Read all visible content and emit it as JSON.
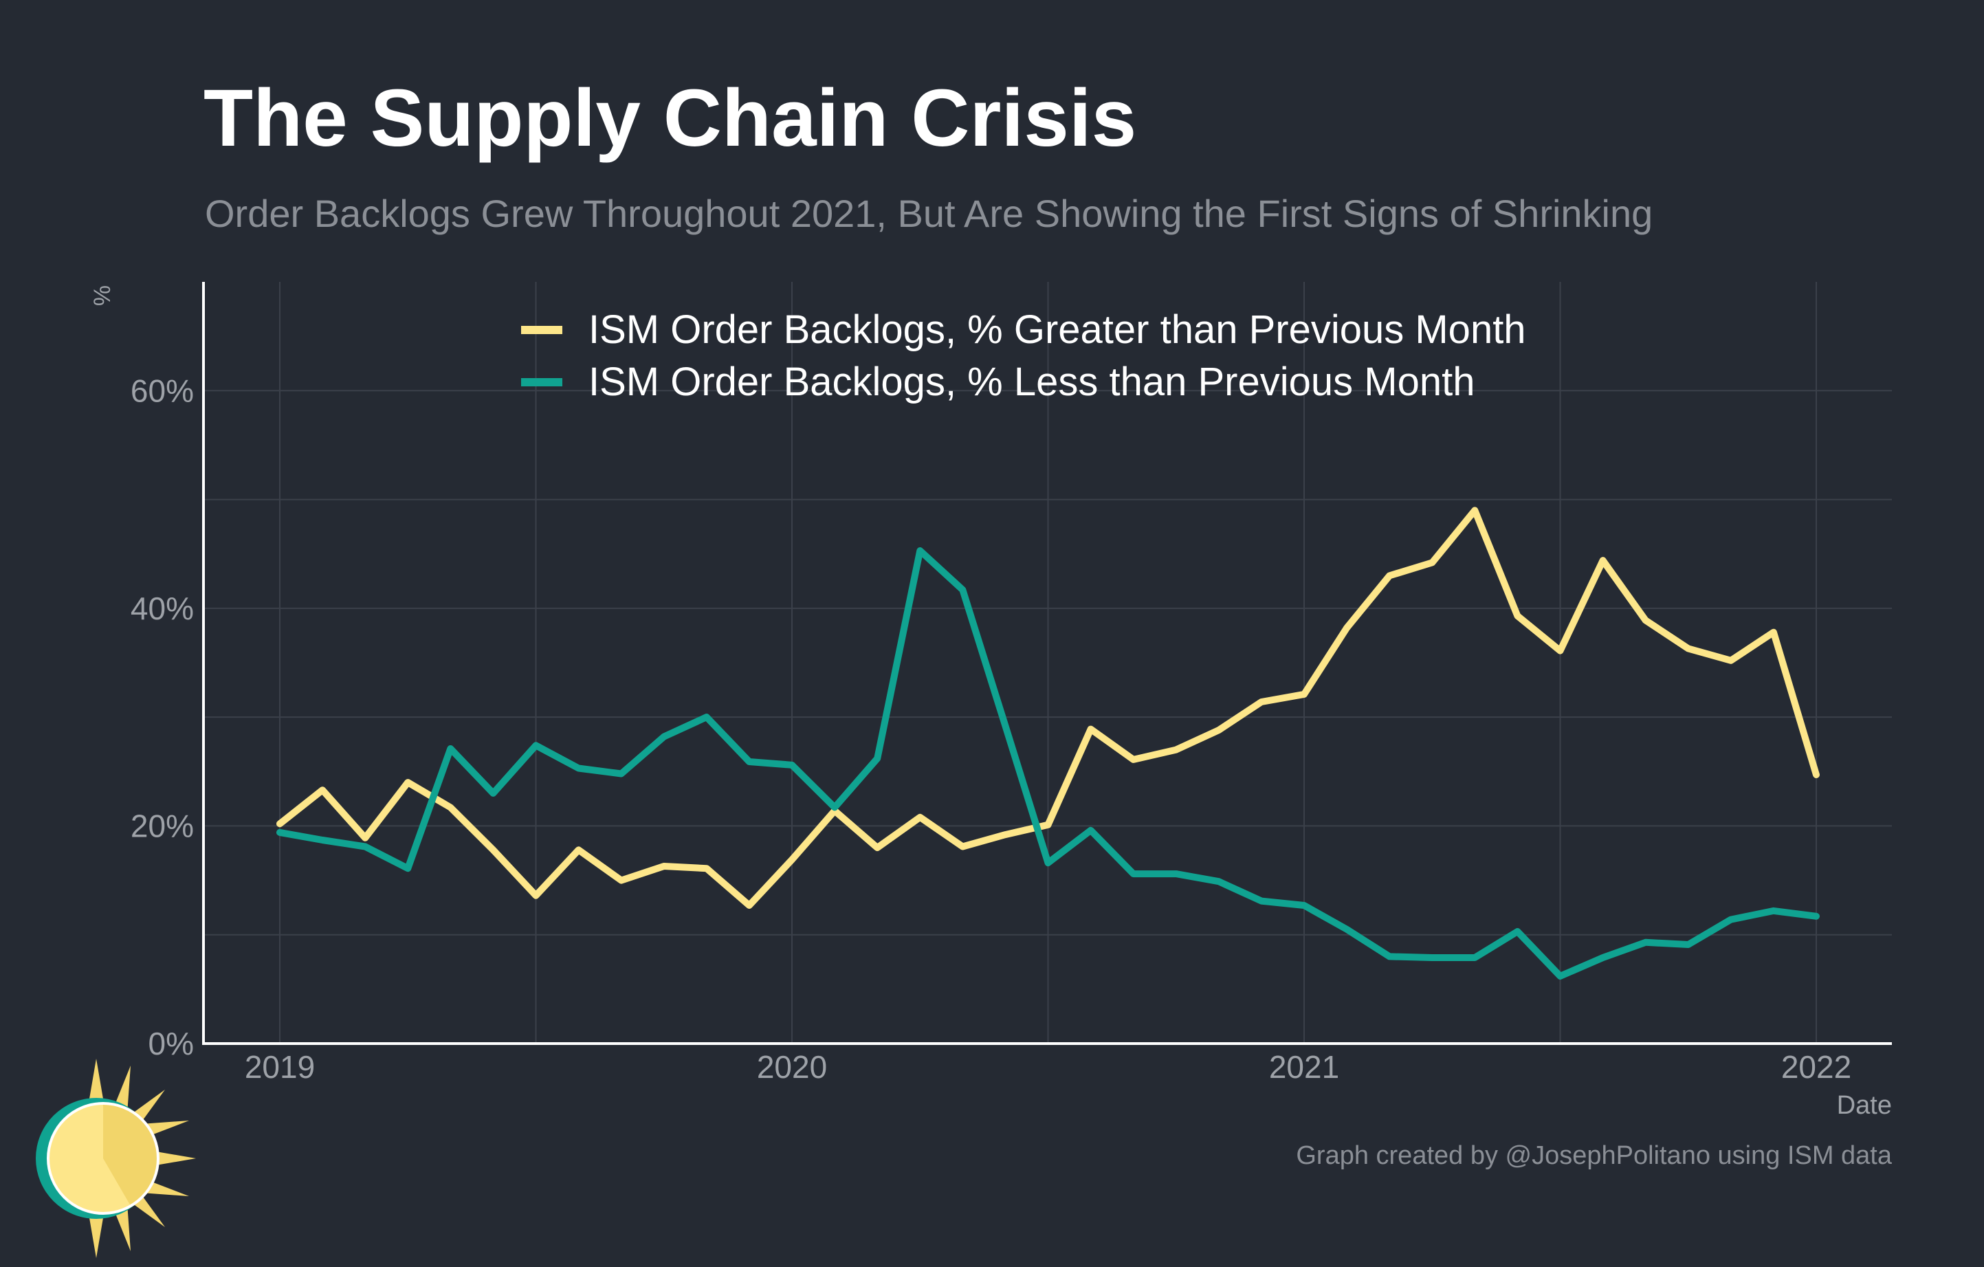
{
  "title": "The Supply Chain Crisis",
  "subtitle": "Order Backlogs Grew Throughout 2021, But Are Showing the First Signs of Shrinking",
  "caption": "Graph created by @JosephPolitano using ISM data",
  "colors": {
    "background": "#252a33",
    "greater": "#fde68a",
    "less": "#10a391",
    "grid": "#3b404a",
    "axis": "#ffffff",
    "tick_text": "#9ea2a8"
  },
  "chart_data": {
    "type": "line",
    "xlabel": "Date",
    "ylabel": "%",
    "xlim": [
      "2019-01",
      "2022-01"
    ],
    "ylim": [
      0,
      70
    ],
    "x_ticks": [
      "2019",
      "2020",
      "2021",
      "2022"
    ],
    "y_ticks": [
      "0%",
      "20%",
      "40%",
      "60%"
    ],
    "legend_position": "top-center",
    "grid": true,
    "x": [
      "2019-01",
      "2019-02",
      "2019-03",
      "2019-04",
      "2019-05",
      "2019-06",
      "2019-07",
      "2019-08",
      "2019-09",
      "2019-10",
      "2019-11",
      "2019-12",
      "2020-01",
      "2020-02",
      "2020-03",
      "2020-04",
      "2020-05",
      "2020-06",
      "2020-07",
      "2020-08",
      "2020-09",
      "2020-10",
      "2020-11",
      "2020-12",
      "2021-01",
      "2021-02",
      "2021-03",
      "2021-04",
      "2021-05",
      "2021-06",
      "2021-07",
      "2021-08",
      "2021-09",
      "2021-10",
      "2021-11",
      "2021-12",
      "2022-01"
    ],
    "series": [
      {
        "name": "ISM Order Backlogs, % Greater than Previous Month",
        "color": "#fde68a",
        "values": [
          20.2,
          23.3,
          18.9,
          24.0,
          21.7,
          17.8,
          13.6,
          17.8,
          15.0,
          16.3,
          16.1,
          12.7,
          16.9,
          21.4,
          18.0,
          20.8,
          18.1,
          19.2,
          20.1,
          28.9,
          26.1,
          27.0,
          28.8,
          31.4,
          32.1,
          38.2,
          43.0,
          44.2,
          49.0,
          39.3,
          36.1,
          44.4,
          38.9,
          36.3,
          35.2,
          37.8,
          24.7
        ]
      },
      {
        "name": "ISM Order Backlogs, % Less than Previous Month",
        "color": "#10a391",
        "values": [
          19.4,
          18.7,
          18.1,
          16.1,
          27.1,
          23.0,
          27.4,
          25.3,
          24.8,
          28.2,
          30.0,
          25.9,
          25.6,
          21.7,
          26.2,
          45.3,
          41.7,
          29.2,
          16.6,
          19.6,
          15.6,
          15.6,
          14.9,
          13.1,
          12.7,
          10.5,
          8.0,
          7.9,
          7.9,
          10.3,
          6.2,
          7.9,
          9.3,
          9.1,
          11.4,
          12.2,
          11.7
        ]
      }
    ]
  }
}
